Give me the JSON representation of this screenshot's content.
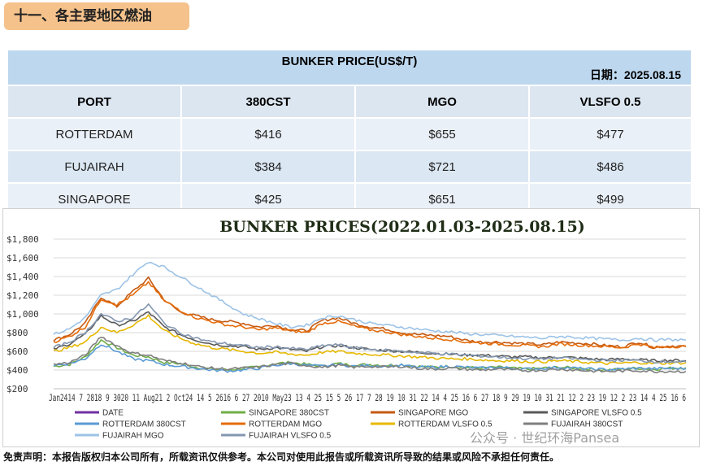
{
  "section_title": "十一、各主要地区燃油",
  "table": {
    "title": "BUNKER PRICE(US$/T)",
    "date": "日期：2025.08.15",
    "headers": [
      "PORT",
      "380CST",
      "MGO",
      "VLSFO 0.5"
    ],
    "rows": [
      [
        "ROTTERDAM",
        "$416",
        "$655",
        "$477"
      ],
      [
        "FUJAIRAH",
        "$384",
        "$721",
        "$486"
      ],
      [
        "SINGAPORE",
        "$425",
        "$651",
        "$499"
      ]
    ]
  },
  "chart_data": {
    "type": "line",
    "title": "BUNKER PRICES(2022.01.03-2025.08.15)",
    "ylim": [
      200,
      1800
    ],
    "yticks": [
      "$200",
      "$400",
      "$600",
      "$800",
      "$1,000",
      "$1,200",
      "$1,400",
      "$1,600",
      "$1,800"
    ],
    "xtick_text": "Jan2414 7 2818 9 3020 11 Aug21 2 Oct24 14 5 2616 6 27 2010 May23 13 4 25 15 5 26 17 7 28 19 10 31 22 14 4 25 16 6 27 18 9 29 19 10 31 21 12 2 23 19 12 2 23 14 4 25 16 6",
    "x_points": 41,
    "series": [
      {
        "name": "DATE",
        "color": "#7030a0",
        "values": []
      },
      {
        "name": "SINGAPORE 380CST",
        "color": "#70ad47",
        "values": [
          440,
          460,
          540,
          720,
          640,
          560,
          540,
          480,
          470,
          430,
          410,
          400,
          420,
          430,
          470,
          480,
          460,
          440,
          470,
          450,
          460,
          450,
          460,
          440,
          430,
          440,
          430,
          420,
          430,
          420,
          410,
          420,
          430,
          420,
          410,
          400,
          410,
          420,
          410,
          420,
          425
        ]
      },
      {
        "name": "SINGAPORE MGO",
        "color": "#c55a11",
        "values": [
          720,
          780,
          900,
          1180,
          1080,
          1240,
          1380,
          1150,
          1020,
          980,
          940,
          920,
          900,
          860,
          880,
          830,
          820,
          930,
          960,
          900,
          860,
          840,
          800,
          780,
          770,
          760,
          720,
          700,
          700,
          690,
          680,
          670,
          700,
          690,
          680,
          660,
          650,
          700,
          640,
          660,
          651
        ]
      },
      {
        "name": "SINGAPORE VLSFO 0.5",
        "color": "#595959",
        "values": [
          620,
          680,
          780,
          980,
          880,
          920,
          1020,
          860,
          780,
          720,
          680,
          660,
          650,
          620,
          640,
          620,
          600,
          650,
          660,
          640,
          620,
          610,
          600,
          590,
          580,
          570,
          560,
          560,
          550,
          540,
          540,
          530,
          540,
          530,
          520,
          510,
          520,
          510,
          500,
          505,
          499
        ]
      },
      {
        "name": "ROTTERDAM 380CST",
        "color": "#5b9bd5",
        "values": [
          450,
          470,
          520,
          680,
          600,
          520,
          500,
          460,
          440,
          420,
          400,
          390,
          400,
          420,
          450,
          470,
          450,
          440,
          460,
          440,
          450,
          440,
          450,
          430,
          430,
          440,
          430,
          420,
          430,
          420,
          410,
          420,
          430,
          420,
          410,
          405,
          410,
          420,
          415,
          418,
          416
        ]
      },
      {
        "name": "ROTTERDAM MGO",
        "color": "#e46c0a",
        "values": [
          700,
          760,
          860,
          1160,
          1100,
          1200,
          1340,
          1140,
          1040,
          960,
          920,
          880,
          860,
          830,
          850,
          820,
          800,
          900,
          920,
          870,
          830,
          810,
          780,
          760,
          740,
          730,
          700,
          690,
          680,
          670,
          660,
          650,
          680,
          670,
          660,
          650,
          640,
          680,
          640,
          650,
          655
        ]
      },
      {
        "name": "ROTTERDAM VLSFO 0.5",
        "color": "#e6b800",
        "values": [
          600,
          640,
          700,
          860,
          800,
          880,
          980,
          820,
          740,
          680,
          640,
          620,
          600,
          580,
          590,
          570,
          560,
          590,
          600,
          580,
          570,
          560,
          550,
          540,
          530,
          520,
          520,
          510,
          500,
          500,
          490,
          490,
          500,
          490,
          480,
          470,
          475,
          480,
          470,
          475,
          477
        ]
      },
      {
        "name": "FUJAIRAH 380CST",
        "color": "#7f7f7f",
        "values": [
          460,
          480,
          560,
          760,
          660,
          580,
          560,
          500,
          480,
          440,
          420,
          410,
          420,
          430,
          460,
          470,
          450,
          430,
          450,
          430,
          440,
          430,
          440,
          420,
          410,
          420,
          410,
          400,
          410,
          400,
          395,
          400,
          410,
          400,
          390,
          385,
          390,
          395,
          385,
          388,
          384
        ]
      },
      {
        "name": "FUJAIRAH MGO",
        "color": "#9dc3e6",
        "values": [
          780,
          840,
          960,
          1200,
          1260,
          1420,
          1560,
          1500,
          1400,
          1300,
          1200,
          1100,
          1000,
          950,
          900,
          860,
          880,
          960,
          980,
          940,
          900,
          880,
          860,
          840,
          820,
          810,
          790,
          780,
          770,
          760,
          750,
          740,
          760,
          750,
          740,
          730,
          720,
          740,
          720,
          725,
          721
        ]
      },
      {
        "name": "FUJAIRAH VLSFO 0.5",
        "color": "#8497b0",
        "values": [
          640,
          700,
          800,
          1000,
          920,
          960,
          1100,
          900,
          800,
          740,
          700,
          680,
          660,
          640,
          650,
          630,
          620,
          660,
          670,
          640,
          620,
          610,
          600,
          590,
          580,
          570,
          560,
          550,
          540,
          530,
          520,
          520,
          530,
          520,
          510,
          500,
          505,
          500,
          490,
          492,
          486
        ]
      }
    ]
  },
  "footer": "免责声明：本报告版权归本公司所有，所载资讯仅供参考。本公司对使用此报告或所载资讯所导致的结果或风险不承担任何责任。",
  "watermark": "pansea",
  "wechat_mark": "公众号 · 世纪环海Pansea"
}
